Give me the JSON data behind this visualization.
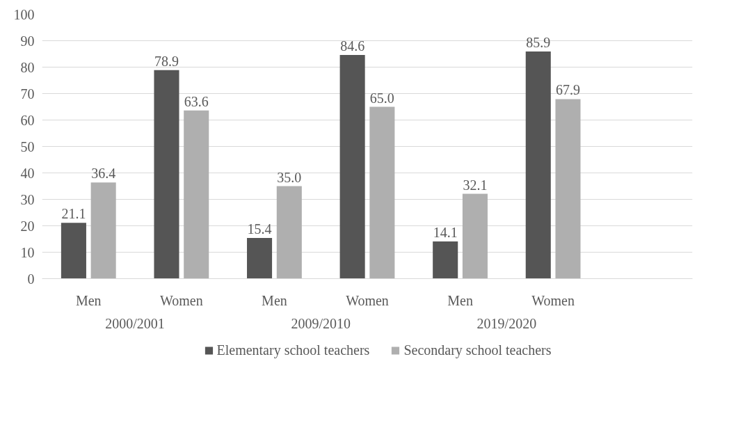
{
  "chart_data": {
    "type": "bar",
    "categories": [
      "Men",
      "Women",
      "Men",
      "Women",
      "Men",
      "Women",
      null
    ],
    "annotations": [
      "2000/2001",
      "2009/2010",
      "2019/2020"
    ],
    "series": [
      {
        "name": "Elementary school teachers",
        "color": "#555555",
        "values": [
          21.1,
          78.9,
          15.4,
          84.6,
          14.1,
          85.9,
          null
        ],
        "value_labels": [
          "21.1",
          "78.9",
          "15.4",
          "84.6",
          "14.1",
          "85.9",
          null
        ]
      },
      {
        "name": "Secondary school teachers",
        "color": "#afafaf",
        "values": [
          36.4,
          63.6,
          35.0,
          65.0,
          32.1,
          67.9,
          null
        ],
        "value_labels": [
          "36.4",
          "63.6",
          "35.0",
          "65.0",
          "32.1",
          "67.9",
          null
        ]
      }
    ],
    "ylim": [
      0,
      100
    ],
    "yticks": [
      0,
      10,
      20,
      30,
      40,
      50,
      60,
      70,
      80,
      90,
      100
    ],
    "grid": "y",
    "legend": "bottom"
  }
}
